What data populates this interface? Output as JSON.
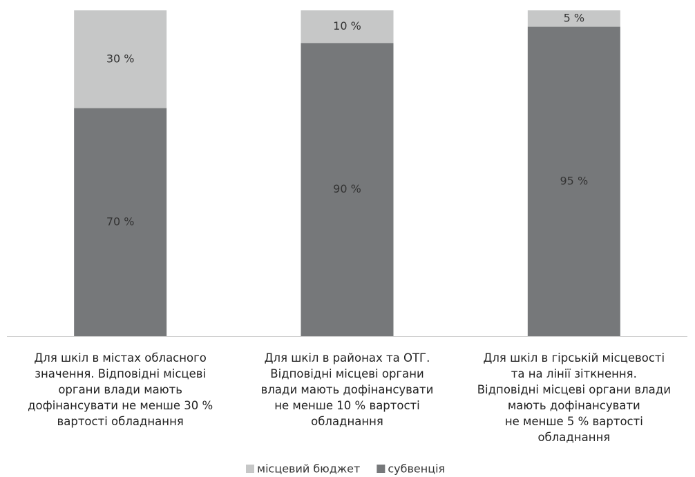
{
  "chart_data": {
    "type": "stacked_bar",
    "categories": [
      "Для шкіл в містах обласного\nзначення. Відповідні місцеві\nоргани влади мають\nдофінансувати не менше 30 %\nвартості обладнання",
      "Для шкіл в районах та ОТГ.\nВідповідні місцеві органи\nвлади мають дофінансувати\nне менше 10 % вартості\nобладнання",
      "Для шкіл в гірській місцевості\nта на лінії зіткнення.\nВідповідні місцеві органи влади\nмають дофінансувати\nне менше 5 % вартості\nобладнання"
    ],
    "series": [
      {
        "name": "місцевий бюджет",
        "color": "#c6c7c7",
        "values": [
          30,
          10,
          5
        ],
        "value_labels": [
          "30 %",
          "10 %",
          "5 %"
        ]
      },
      {
        "name": "субвенція",
        "color": "#76787a",
        "values": [
          70,
          90,
          95
        ],
        "value_labels": [
          "70 %",
          "90 %",
          "95 %"
        ]
      }
    ],
    "ylim": [
      0,
      100
    ],
    "legend": "bottom"
  }
}
